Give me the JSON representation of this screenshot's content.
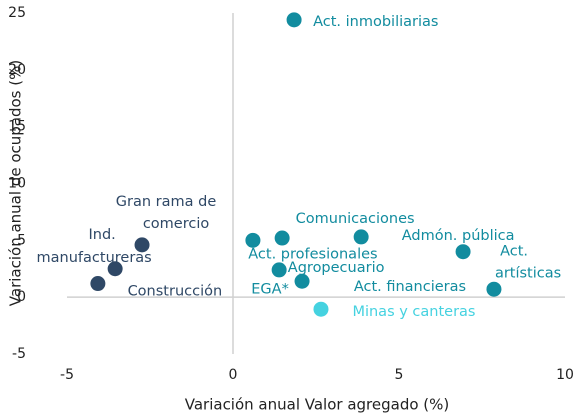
{
  "chart_data": {
    "type": "scatter",
    "x_label": "Variación anual Valor agregado (%)",
    "y_label": "Variación anual de ocupados (%)",
    "xlim": [
      -5,
      10
    ],
    "xticks": [
      -5,
      0,
      5,
      10
    ],
    "ylim": [
      -5,
      25
    ],
    "yticks": [
      -5,
      0,
      5,
      10,
      15,
      20,
      25
    ],
    "points": [
      {
        "label": [
          "Act. inmobiliarias"
        ],
        "x": 1.84,
        "y": 24.4,
        "color": "#128c9f"
      },
      {
        "label": [
          "Comunicaciones"
        ],
        "x": 1.48,
        "y": 5.2,
        "color": "#128c9f"
      },
      {
        "label": [
          "Act. profesionales"
        ],
        "x": 0.6,
        "y": 5.0,
        "color": "#128c9f"
      },
      {
        "label": [
          "Admón. pública"
        ],
        "x": 3.86,
        "y": 5.3,
        "color": "#128c9f"
      },
      {
        "label": [
          "Act.",
          "artísticas"
        ],
        "x": 6.93,
        "y": 4.0,
        "color": "#128c9f"
      },
      {
        "label": [
          "Agropecuario"
        ],
        "x": 1.39,
        "y": 2.4,
        "color": "#128c9f"
      },
      {
        "label": [
          "EGA*"
        ],
        "x": 2.08,
        "y": 1.4,
        "color": "#128c9f"
      },
      {
        "label": [
          "Act. financieras"
        ],
        "x": 7.86,
        "y": 0.7,
        "color": "#128c9f"
      },
      {
        "label": [
          "Minas y canteras"
        ],
        "x": 2.65,
        "y": -1.06,
        "color": "#45d2e0"
      },
      {
        "label": [
          "Gran rama de",
          "comercio"
        ],
        "x": -2.74,
        "y": 4.6,
        "color": "#2f4866"
      },
      {
        "label": [
          "Ind.",
          "manufactureras"
        ],
        "x": -3.55,
        "y": 2.5,
        "color": "#2f4866"
      },
      {
        "label": [
          "Construcción"
        ],
        "x": -4.07,
        "y": 1.2,
        "color": "#2f4866"
      }
    ]
  }
}
